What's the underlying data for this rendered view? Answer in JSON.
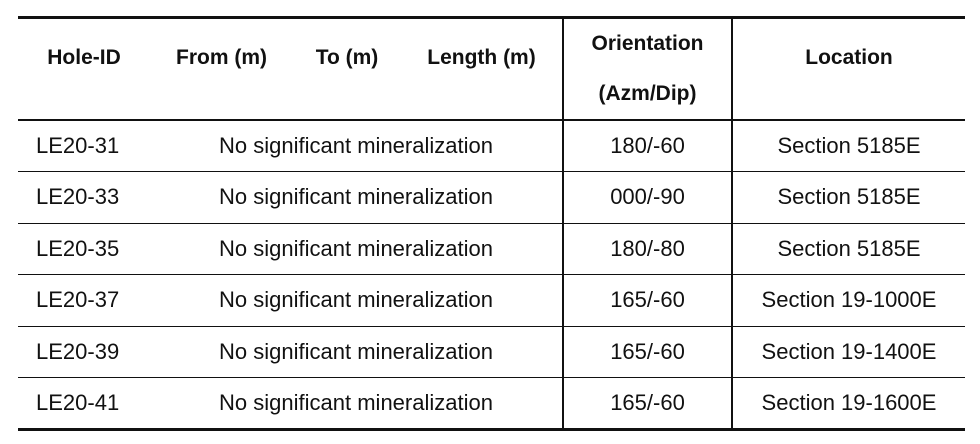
{
  "table": {
    "headers": [
      "Hole-ID",
      "From (m)",
      "To (m)",
      "Length (m)",
      "Orientation (Azm/Dip)",
      "Location"
    ],
    "rows": [
      [
        "LE20-31",
        "No significant mineralization",
        "180/-60",
        "Section 5185E"
      ],
      [
        "LE20-33",
        "No significant mineralization",
        "000/-90",
        "Section 5185E"
      ],
      [
        "LE20-35",
        "No significant mineralization",
        "180/-80",
        "Section 5185E"
      ],
      [
        "LE20-37",
        "No significant mineralization",
        "165/-60",
        "Section 19-1000E"
      ],
      [
        "LE20-39",
        "No significant mineralization",
        "165/-60",
        "Section 19-1400E"
      ],
      [
        "LE20-41",
        "No significant mineralization",
        "165/-60",
        "Section 19-1600E"
      ]
    ]
  }
}
